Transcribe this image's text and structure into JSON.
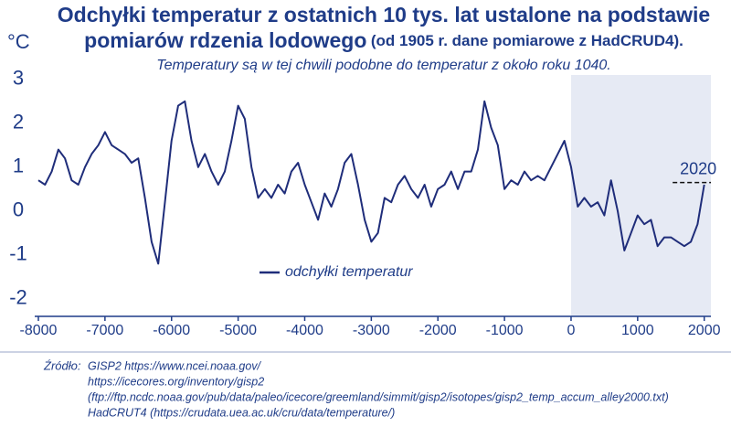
{
  "chart_data": {
    "type": "line",
    "title_line1": "Odchyłki temperatur z ostatnich 10 tys. lat ustalone na podstawie",
    "title_line2_main": "pomiarów rdzenia lodowego",
    "title_line2_note": "(od 1905 r. dane pomiarowe z HadCRUD4).",
    "subtitle": "Temperatury są w tej chwili podobne do temperatur z około roku 1040.",
    "y_unit_label": "°C",
    "x": [
      -8000,
      -7900,
      -7800,
      -7700,
      -7600,
      -7500,
      -7400,
      -7300,
      -7200,
      -7100,
      -7000,
      -6900,
      -6800,
      -6700,
      -6600,
      -6500,
      -6400,
      -6300,
      -6200,
      -6100,
      -6000,
      -5900,
      -5800,
      -5700,
      -5600,
      -5500,
      -5400,
      -5300,
      -5200,
      -5100,
      -5000,
      -4900,
      -4800,
      -4700,
      -4600,
      -4500,
      -4400,
      -4300,
      -4200,
      -4100,
      -4000,
      -3900,
      -3800,
      -3700,
      -3600,
      -3500,
      -3400,
      -3300,
      -3200,
      -3100,
      -3000,
      -2900,
      -2800,
      -2700,
      -2600,
      -2500,
      -2400,
      -2300,
      -2200,
      -2100,
      -2000,
      -1900,
      -1800,
      -1700,
      -1600,
      -1500,
      -1400,
      -1300,
      -1200,
      -1100,
      -1000,
      -900,
      -800,
      -700,
      -600,
      -500,
      -400,
      -300,
      -200,
      -100,
      0,
      100,
      200,
      300,
      400,
      500,
      600,
      700,
      800,
      900,
      1000,
      1100,
      1200,
      1300,
      1400,
      1500,
      1600,
      1700,
      1800,
      1900,
      2000
    ],
    "series": [
      {
        "name": "odchyłki temperatur",
        "color": "#1f2d7a",
        "values": [
          0.7,
          0.6,
          0.9,
          1.4,
          1.2,
          0.7,
          0.6,
          1.0,
          1.3,
          1.5,
          1.8,
          1.5,
          1.4,
          1.3,
          1.1,
          1.2,
          0.3,
          -0.7,
          -1.2,
          0.2,
          1.6,
          2.4,
          2.5,
          1.6,
          1.0,
          1.3,
          0.9,
          0.6,
          0.9,
          1.6,
          2.4,
          2.1,
          1.0,
          0.3,
          0.5,
          0.3,
          0.6,
          0.4,
          0.9,
          1.1,
          0.6,
          0.2,
          -0.2,
          0.4,
          0.1,
          0.5,
          1.1,
          1.3,
          0.6,
          -0.2,
          -0.7,
          -0.5,
          0.3,
          0.2,
          0.6,
          0.8,
          0.5,
          0.3,
          0.6,
          0.1,
          0.5,
          0.6,
          0.9,
          0.5,
          0.9,
          0.9,
          1.4,
          2.5,
          1.9,
          1.5,
          0.5,
          0.7,
          0.6,
          0.9,
          0.7,
          0.8,
          0.7,
          1.0,
          1.3,
          1.6,
          1.0,
          0.1,
          0.3,
          0.1,
          0.2,
          -0.1,
          0.7,
          0.0,
          -0.9,
          -0.5,
          -0.1,
          -0.3,
          -0.2,
          -0.8,
          -0.6,
          -0.6,
          -0.7,
          -0.8,
          -0.7,
          -0.3,
          0.6
        ]
      }
    ],
    "xlim": [
      -8000,
      2100
    ],
    "ylim": [
      -2.4,
      3.1
    ],
    "xticks": [
      -8000,
      -7000,
      -6000,
      -5000,
      -4000,
      -3000,
      -2000,
      -1000,
      0,
      1000,
      2000
    ],
    "yticks": [
      -2,
      -1,
      0,
      1,
      2,
      3
    ],
    "shaded_x": [
      0,
      2100
    ],
    "shade_color": "#e6eaf4",
    "annotation": {
      "text": "2020",
      "x": 2020,
      "y": 0.65
    },
    "source_label": "Źródło:",
    "source_lines": [
      "GISP2 https://www.ncei.noaa.gov/",
      "https://icecores.org/inventory/gisp2",
      "(ftp://ftp.ncdc.noaa.gov/pub/data/paleo/icecore/greemland/simmit/gisp2/isotopes/gisp2_temp_accum_alley2000.txt)",
      "HadCRUT4 (https://crudata.uea.ac.uk/cru/data/temperature/)"
    ]
  }
}
